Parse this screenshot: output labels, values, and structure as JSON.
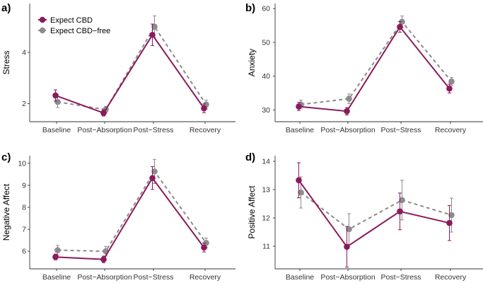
{
  "chart_data": [
    {
      "type": "line",
      "panel_label": "a)",
      "ylabel": "Stress",
      "categories": [
        "Baseline",
        "Post−Absorption",
        "Post−Stress",
        "Recovery"
      ],
      "ylim": [
        1.3,
        5.9
      ],
      "yticks": [
        2,
        4
      ],
      "series": [
        {
          "name": "Expect CBD",
          "values": [
            2.32,
            1.64,
            4.68,
            1.82
          ],
          "errors": [
            0.22,
            0.12,
            0.42,
            0.17
          ]
        },
        {
          "name": "Expect CBD−free",
          "values": [
            2.07,
            1.77,
            5.0,
            1.97
          ],
          "errors": [
            0.22,
            0.13,
            0.42,
            0.17
          ]
        }
      ],
      "legend": "top-left"
    },
    {
      "type": "line",
      "panel_label": "b)",
      "ylabel": "Anxiety",
      "categories": [
        "Baseline",
        "Post−Absorption",
        "Post−Stress",
        "Recovery"
      ],
      "ylim": [
        26.5,
        61.5
      ],
      "yticks": [
        30,
        40,
        50,
        60
      ],
      "series": [
        {
          "name": "Expect CBD",
          "values": [
            31.0,
            29.6,
            54.6,
            36.3
          ],
          "errors": [
            1.2,
            1.1,
            1.6,
            1.3
          ]
        },
        {
          "name": "Expect CBD−free",
          "values": [
            31.6,
            33.3,
            56.1,
            38.4
          ],
          "errors": [
            1.3,
            1.4,
            1.7,
            1.2
          ]
        }
      ]
    },
    {
      "type": "line",
      "panel_label": "c)",
      "ylabel": "Negative Affect",
      "categories": [
        "Baseline",
        "Post−Absorption",
        "Post−Stress",
        "Recovery"
      ],
      "ylim": [
        5.2,
        10.35
      ],
      "yticks": [
        6,
        7,
        8,
        9,
        10
      ],
      "series": [
        {
          "name": "Expect CBD",
          "values": [
            5.74,
            5.63,
            9.33,
            6.17
          ],
          "errors": [
            0.13,
            0.15,
            0.52,
            0.2
          ]
        },
        {
          "name": "Expect CBD−free",
          "values": [
            6.05,
            6.0,
            9.63,
            6.38
          ],
          "errors": [
            0.22,
            0.22,
            0.55,
            0.22
          ]
        }
      ]
    },
    {
      "type": "line",
      "panel_label": "d)",
      "ylabel": "Positive Affect",
      "categories": [
        "Baseline",
        "Post−Absorption",
        "Post−Stress",
        "Recovery"
      ],
      "ylim": [
        10.2,
        14.2
      ],
      "yticks": [
        11,
        12,
        13,
        14
      ],
      "series": [
        {
          "name": "Expect CBD",
          "values": [
            13.33,
            10.98,
            12.23,
            11.82
          ],
          "errors": [
            0.62,
            0.72,
            0.65,
            0.62
          ]
        },
        {
          "name": "Expect CBD−free",
          "values": [
            12.9,
            11.6,
            12.63,
            12.1
          ],
          "errors": [
            0.55,
            0.55,
            0.7,
            0.6
          ]
        }
      ]
    }
  ],
  "legend": {
    "items": [
      "Expect CBD",
      "Expect CBD−free"
    ]
  },
  "colors": {
    "cbd": "#8b1a5c",
    "cbd_free": "#8c8c8c",
    "axis": "#333333"
  }
}
